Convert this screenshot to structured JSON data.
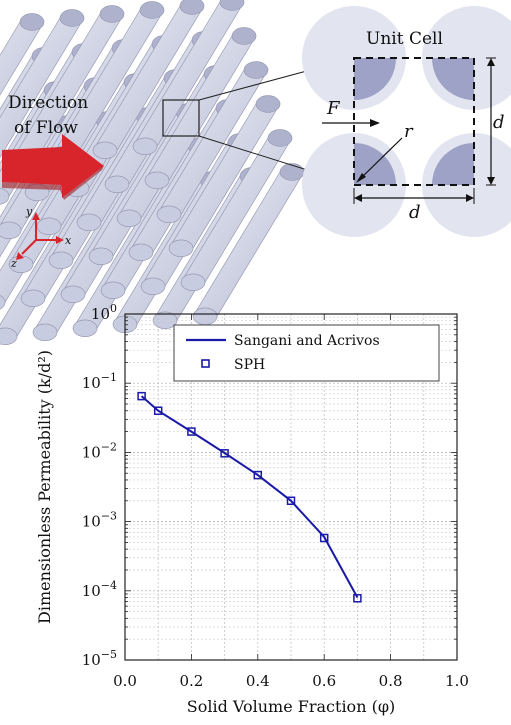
{
  "top_figure": {
    "flow_label_line1": "Direction",
    "flow_label_line2": "of Flow",
    "axis_y": "y",
    "axis_x": "x",
    "axis_z": "z",
    "unit_cell_title": "Unit Cell",
    "force_label": "F",
    "radius_label": "r",
    "spacing_label_right": "d",
    "spacing_label_bottom": "d",
    "colors": {
      "cylinder": "#c8cce0",
      "circle": "#9ea2c6",
      "circle_light": "#dde0ee",
      "arrow": "#d8252b"
    }
  },
  "chart_data": {
    "type": "line",
    "xlabel": "Solid Volume Fraction (φ)",
    "ylabel": "Dimensionless Permeability (k/d²)",
    "xlim": [
      0.0,
      1.0
    ],
    "ylim": [
      1e-05,
      1
    ],
    "yscale": "log",
    "grid": true,
    "legend_position": "top-right",
    "xticks": [
      "0.0",
      "0.2",
      "0.4",
      "0.6",
      "0.8",
      "1.0"
    ],
    "yticks": [
      {
        "base": "10",
        "exp": "0"
      },
      {
        "base": "10",
        "exp": "−1"
      },
      {
        "base": "10",
        "exp": "−2"
      },
      {
        "base": "10",
        "exp": "−3"
      },
      {
        "base": "10",
        "exp": "−4"
      },
      {
        "base": "10",
        "exp": "−5"
      }
    ],
    "series": [
      {
        "name": "Sangani and Acrivos",
        "style": "line",
        "color": "#1a1aa8",
        "x": [
          0.05,
          0.1,
          0.2,
          0.3,
          0.4,
          0.5,
          0.6,
          0.7
        ],
        "y": [
          0.065,
          0.04,
          0.02,
          0.0098,
          0.0047,
          0.002,
          0.0006,
          8e-05
        ]
      },
      {
        "name": "SPH",
        "style": "square-marker",
        "color": "#1a1aa8",
        "x": [
          0.05,
          0.1,
          0.2,
          0.3,
          0.4,
          0.5,
          0.6,
          0.7
        ],
        "y": [
          0.065,
          0.04,
          0.02,
          0.0097,
          0.0047,
          0.002,
          0.00058,
          7.8e-05
        ]
      }
    ]
  }
}
